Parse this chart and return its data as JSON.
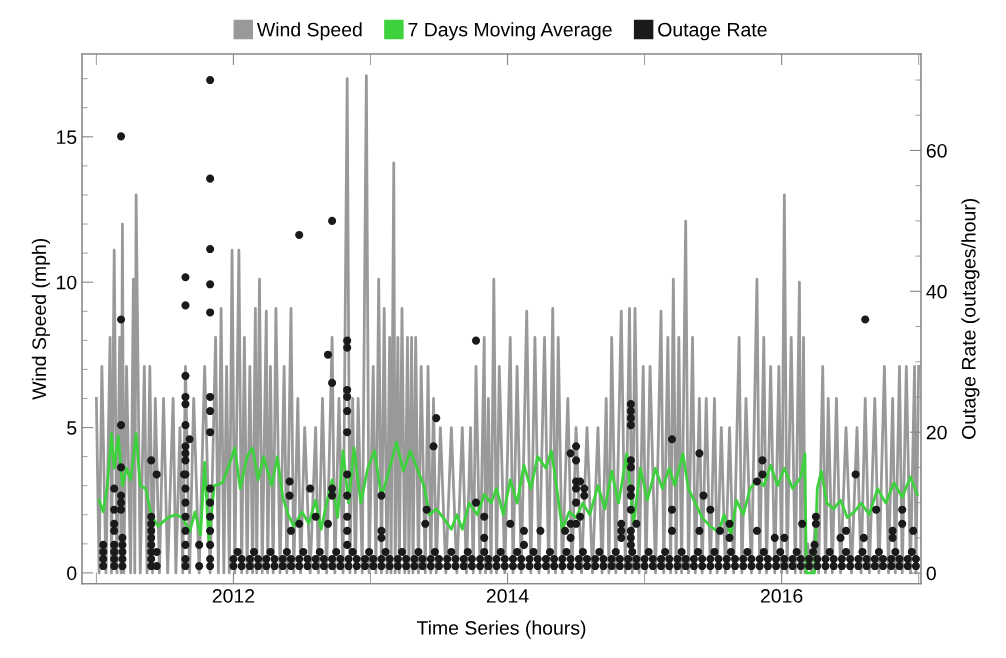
{
  "chart_data": {
    "type": "line",
    "xlabel": "Time Series (hours)",
    "ylabel": "Wind Speed (mph)",
    "y2label": "Outage Rate (outages/hour)",
    "xlim": [
      2010.895,
      2017.017
    ],
    "xticks": [
      {
        "value": 2011,
        "label": null
      },
      2012,
      {
        "value": 2013,
        "label": null
      },
      2014,
      {
        "value": 2015,
        "label": null
      },
      2016,
      {
        "value": 2017,
        "label": null
      }
    ],
    "ylim": [
      -0.37,
      17.85
    ],
    "yticks": [
      0,
      {
        "value": 1,
        "label": null
      },
      {
        "value": 2,
        "label": null
      },
      {
        "value": 3,
        "label": null
      },
      {
        "value": 4,
        "label": null
      },
      5,
      {
        "value": 6,
        "label": null
      },
      {
        "value": 7,
        "label": null
      },
      {
        "value": 8,
        "label": null
      },
      {
        "value": 9,
        "label": null
      },
      10,
      {
        "value": 11,
        "label": null
      },
      {
        "value": 12,
        "label": null
      },
      {
        "value": 13,
        "label": null
      },
      {
        "value": 14,
        "label": null
      },
      15,
      {
        "value": 16,
        "label": null
      },
      {
        "value": 17,
        "label": null
      }
    ],
    "y2lim": [
      -1.5,
      73.7
    ],
    "y2ticks": [
      0,
      {
        "value": 5,
        "label": null
      },
      {
        "value": 10,
        "label": null
      },
      {
        "value": 15,
        "label": null
      },
      20,
      {
        "value": 25,
        "label": null
      },
      {
        "value": 30,
        "label": null
      },
      {
        "value": 35,
        "label": null
      },
      40,
      {
        "value": 45,
        "label": null
      },
      {
        "value": 50,
        "label": null
      },
      {
        "value": 55,
        "label": null
      },
      60,
      {
        "value": 65,
        "label": null
      },
      {
        "value": 70,
        "label": null
      }
    ],
    "grid": false,
    "legend": "top",
    "series": [
      {
        "name": "Wind Speed",
        "color": "#999999",
        "marker": "none",
        "x": [
          2011.0,
          2011.02,
          2011.04,
          2011.07,
          2011.1,
          2011.11,
          2011.13,
          2011.15,
          2011.17,
          2011.18,
          2011.19,
          2011.2,
          2011.22,
          2011.25,
          2011.27,
          2011.28,
          2011.29,
          2011.32,
          2011.35,
          2011.37,
          2011.39,
          2011.41,
          2011.43,
          2011.46,
          2011.49,
          2011.52,
          2011.56,
          2011.58,
          2011.61,
          2011.63,
          2011.65,
          2011.68,
          2011.71,
          2011.75,
          2011.79,
          2011.83,
          2011.87,
          2011.89,
          2011.91,
          2011.93,
          2011.95,
          2011.97,
          2011.99,
          2012.01,
          2012.04,
          2012.06,
          2012.08,
          2012.1,
          2012.12,
          2012.14,
          2012.16,
          2012.17,
          2012.19,
          2012.21,
          2012.24,
          2012.25,
          2012.27,
          2012.29,
          2012.31,
          2012.34,
          2012.37,
          2012.39,
          2012.42,
          2012.44,
          2012.47,
          2012.49,
          2012.52,
          2012.56,
          2012.6,
          2012.62,
          2012.65,
          2012.68,
          2012.72,
          2012.74,
          2012.77,
          2012.8,
          2012.83,
          2012.85,
          2012.87,
          2012.89,
          2012.91,
          2012.94,
          2012.97,
          2012.99,
          2013.02,
          2013.04,
          2013.06,
          2013.08,
          2013.1,
          2013.12,
          2013.14,
          2013.15,
          2013.17,
          2013.18,
          2013.2,
          2013.21,
          2013.23,
          2013.25,
          2013.27,
          2013.28,
          2013.3,
          2013.31,
          2013.33,
          2013.35,
          2013.37,
          2013.4,
          2013.42,
          2013.44,
          2013.46,
          2013.48,
          2013.51,
          2013.55,
          2013.59,
          2013.63,
          2013.67,
          2013.7,
          2013.73,
          2013.75,
          2013.77,
          2013.8,
          2013.83,
          2013.84,
          2013.86,
          2013.88,
          2013.9,
          2013.92,
          2013.94,
          2013.98,
          2014.02,
          2014.04,
          2014.07,
          2014.1,
          2014.14,
          2014.17,
          2014.2,
          2014.23,
          2014.27,
          2014.3,
          2014.33,
          2014.35,
          2014.37,
          2014.4,
          2014.44,
          2014.47,
          2014.5,
          2014.54,
          2014.58,
          2014.62,
          2014.66,
          2014.69,
          2014.72,
          2014.74,
          2014.76,
          2014.79,
          2014.83,
          2014.86,
          2014.89,
          2014.91,
          2014.93,
          2014.96,
          2014.99,
          2015.01,
          2015.04,
          2015.08,
          2015.12,
          2015.14,
          2015.17,
          2015.19,
          2015.21,
          2015.23,
          2015.25,
          2015.27,
          2015.3,
          2015.32,
          2015.35,
          2015.37,
          2015.4,
          2015.42,
          2015.45,
          2015.48,
          2015.51,
          2015.53,
          2015.56,
          2015.59,
          2015.62,
          2015.65,
          2015.69,
          2015.71,
          2015.74,
          2015.78,
          2015.82,
          2015.84,
          2015.87,
          2015.89,
          2015.92,
          2015.95,
          2015.98,
          2016.0,
          2016.02,
          2016.04,
          2016.07,
          2016.1,
          2016.13,
          2016.14,
          2016.16,
          2016.17,
          2016.19,
          2016.22,
          2016.25,
          2016.27,
          2016.3,
          2016.32,
          2016.34,
          2016.37,
          2016.4,
          2016.43,
          2016.47,
          2016.51,
          2016.55,
          2016.58,
          2016.61,
          2016.64,
          2016.68,
          2016.71,
          2016.75,
          2016.78,
          2016.81,
          2016.83,
          2016.86,
          2016.88,
          2016.91,
          2016.94,
          2016.97,
          2016.98,
          2017.0
        ],
        "values": [
          6.0,
          0,
          7.1,
          0,
          8.1,
          0,
          11.1,
          0,
          8.1,
          0,
          12.0,
          0,
          7.1,
          0,
          10.1,
          0,
          13.0,
          0,
          7.1,
          0,
          7.1,
          0,
          6.0,
          0,
          6.0,
          0,
          6.0,
          0,
          5.0,
          0,
          7.1,
          0,
          6.0,
          0,
          7.1,
          0,
          8.1,
          0,
          9.1,
          0,
          7.1,
          0,
          11.1,
          0,
          11.1,
          0,
          8.1,
          0,
          7.1,
          0,
          9.1,
          0,
          10.1,
          0,
          9.0,
          0,
          7.1,
          0,
          9.1,
          0,
          7.1,
          0,
          9.1,
          0,
          6.0,
          0,
          5.0,
          0,
          5.0,
          0,
          6.0,
          0,
          8.1,
          0,
          6.0,
          0,
          17.0,
          0,
          6.0,
          0,
          6.0,
          0,
          17.1,
          0,
          7.1,
          0,
          10.1,
          0,
          9.1,
          0,
          8.1,
          0,
          14.1,
          0,
          8.1,
          0,
          9.1,
          0,
          8.1,
          0,
          8.1,
          0,
          8.1,
          0,
          7.1,
          0,
          7.1,
          0,
          6.0,
          0,
          5.0,
          0,
          5.0,
          0,
          5.0,
          0,
          5.0,
          0,
          7.1,
          0,
          8.1,
          0,
          6.0,
          0,
          10.1,
          0,
          7.1,
          0,
          8.1,
          0,
          7.1,
          0,
          9.0,
          0,
          8.1,
          0,
          8.1,
          0,
          9.1,
          0,
          8.1,
          0,
          6.0,
          0,
          5.0,
          0,
          5.0,
          0,
          5.0,
          0,
          6.0,
          0,
          8.1,
          0,
          9.0,
          0,
          9.1,
          0,
          9.1,
          0,
          7.1,
          0,
          7.1,
          0,
          9.0,
          0,
          8.1,
          0,
          10.1,
          0,
          8.1,
          0,
          12.1,
          0,
          8.1,
          0,
          6.0,
          0,
          6.0,
          0,
          6.0,
          0,
          5.0,
          0,
          5.0,
          0,
          8.1,
          0,
          6.0,
          0,
          10.1,
          0,
          8.1,
          0,
          7.1,
          0,
          7.1,
          0,
          13.0,
          0,
          8.1,
          0,
          10.0,
          0,
          8.1,
          0,
          1.0,
          0,
          2.0,
          0,
          7.1,
          0,
          6.0,
          0,
          6.0,
          0,
          5.0,
          0,
          5.0,
          0,
          6.0,
          0,
          6.0,
          0,
          7.1,
          0,
          6.0,
          0,
          7.1,
          0,
          7.1,
          0,
          7.1,
          0,
          7.1
        ]
      },
      {
        "name": "7 Days Moving Average",
        "color": "#3dd13d",
        "marker": "none",
        "x": [
          2011.02,
          2011.05,
          2011.08,
          2011.11,
          2011.13,
          2011.16,
          2011.19,
          2011.22,
          2011.25,
          2011.29,
          2011.32,
          2011.36,
          2011.4,
          2011.45,
          2011.52,
          2011.58,
          2011.63,
          2011.68,
          2011.72,
          2011.76,
          2011.79,
          2011.82,
          2011.86,
          2011.92,
          2011.96,
          2012.01,
          2012.05,
          2012.1,
          2012.14,
          2012.18,
          2012.22,
          2012.28,
          2012.32,
          2012.36,
          2012.4,
          2012.44,
          2012.5,
          2012.55,
          2012.6,
          2012.64,
          2012.68,
          2012.72,
          2012.76,
          2012.8,
          2012.84,
          2012.88,
          2012.93,
          2012.98,
          2013.03,
          2013.08,
          2013.14,
          2013.19,
          2013.24,
          2013.29,
          2013.34,
          2013.39,
          2013.43,
          2013.48,
          2013.53,
          2013.59,
          2013.63,
          2013.67,
          2013.72,
          2013.78,
          2013.83,
          2013.88,
          2013.92,
          2013.97,
          2014.02,
          2014.07,
          2014.12,
          2014.17,
          2014.22,
          2014.28,
          2014.32,
          2014.36,
          2014.4,
          2014.45,
          2014.5,
          2014.55,
          2014.6,
          2014.66,
          2014.71,
          2014.76,
          2014.81,
          2014.87,
          2014.92,
          2014.97,
          2015.02,
          2015.08,
          2015.13,
          2015.18,
          2015.22,
          2015.28,
          2015.32,
          2015.37,
          2015.42,
          2015.48,
          2015.54,
          2015.58,
          2015.63,
          2015.67,
          2015.72,
          2015.77,
          2015.82,
          2015.87,
          2015.92,
          2015.97,
          2016.02,
          2016.08,
          2016.14,
          2016.17,
          2016.18,
          2016.24,
          2016.26,
          2016.29,
          2016.33,
          2016.38,
          2016.43,
          2016.48,
          2016.53,
          2016.58,
          2016.64,
          2016.7,
          2016.76,
          2016.82,
          2016.88,
          2016.94,
          2016.99
        ],
        "values": [
          2.5,
          2.1,
          3.0,
          4.8,
          3.6,
          4.7,
          3.0,
          3.6,
          3.2,
          4.8,
          3.0,
          2.9,
          2.0,
          1.6,
          1.9,
          2.0,
          1.9,
          1.4,
          2.1,
          1.3,
          3.8,
          1.1,
          3.0,
          3.1,
          3.6,
          4.3,
          2.9,
          4.0,
          4.3,
          3.2,
          4.0,
          3.0,
          4.0,
          2.6,
          2.0,
          1.6,
          2.1,
          1.7,
          2.5,
          1.5,
          2.4,
          3.2,
          1.9,
          4.2,
          2.4,
          4.3,
          2.4,
          3.6,
          4.2,
          2.6,
          3.6,
          4.5,
          3.5,
          4.2,
          3.6,
          3.0,
          2.0,
          2.2,
          1.9,
          1.5,
          2.0,
          1.5,
          2.4,
          2.0,
          2.7,
          2.4,
          2.9,
          2.0,
          3.2,
          2.4,
          3.7,
          2.9,
          4.0,
          3.6,
          4.2,
          2.9,
          1.5,
          2.1,
          1.9,
          2.4,
          2.0,
          3.0,
          2.2,
          3.5,
          2.4,
          4.1,
          1.7,
          3.6,
          2.5,
          3.6,
          2.9,
          3.6,
          3.0,
          4.1,
          2.9,
          2.4,
          1.9,
          1.6,
          1.4,
          2.0,
          1.3,
          2.5,
          2.0,
          2.9,
          3.2,
          3.0,
          3.7,
          3.0,
          3.6,
          2.9,
          3.3,
          4.1,
          0.0,
          0.0,
          2.9,
          3.5,
          2.4,
          2.2,
          2.5,
          1.9,
          2.1,
          2.4,
          2.0,
          2.9,
          2.4,
          3.1,
          2.6,
          3.3,
          2.7
        ]
      },
      {
        "name": "Outage Rate",
        "type": "scatter",
        "axis": "y2",
        "color": "#1a1a1a",
        "marker": "circle",
        "x": [
          2011.05,
          2011.05,
          2011.05,
          2011.05,
          2011.13,
          2011.13,
          2011.13,
          2011.13,
          2011.13,
          2011.13,
          2011.13,
          2011.13,
          2011.18,
          2011.18,
          2011.18,
          2011.18,
          2011.18,
          2011.18,
          2011.18,
          2011.19,
          2011.19,
          2011.19,
          2011.19,
          2011.19,
          2011.4,
          2011.4,
          2011.4,
          2011.4,
          2011.4,
          2011.4,
          2011.4,
          2011.4,
          2011.4,
          2011.44,
          2011.44,
          2011.44,
          2011.64,
          2011.65,
          2011.65,
          2011.65,
          2011.65,
          2011.65,
          2011.65,
          2011.65,
          2011.65,
          2011.65,
          2011.65,
          2011.65,
          2011.65,
          2011.65,
          2011.65,
          2011.65,
          2011.65,
          2011.65,
          2011.68,
          2011.75,
          2011.75,
          2011.83,
          2011.83,
          2011.83,
          2011.83,
          2011.83,
          2011.83,
          2011.83,
          2011.83,
          2011.83,
          2011.83,
          2011.83,
          2011.83,
          2011.83,
          2011.83,
          2011.83,
          2012.41,
          2012.41,
          2012.42,
          2012.48,
          2012.48,
          2012.56,
          2012.6,
          2012.69,
          2012.69,
          2012.72,
          2012.72,
          2012.72,
          2012.72,
          2012.83,
          2012.83,
          2012.83,
          2012.83,
          2012.83,
          2012.83,
          2012.83,
          2012.83,
          2012.83,
          2012.83,
          2012.83,
          2013.08,
          2013.08,
          2013.08,
          2013.4,
          2013.41,
          2013.46,
          2013.48,
          2013.77,
          2013.77,
          2013.83,
          2013.83,
          2014.02,
          2014.12,
          2014.12,
          2014.24,
          2014.42,
          2014.46,
          2014.46,
          2014.46,
          2014.5,
          2014.5,
          2014.5,
          2014.5,
          2014.5,
          2014.5,
          2014.53,
          2014.53,
          2014.56,
          2014.56,
          2014.83,
          2014.83,
          2014.83,
          2014.9,
          2014.9,
          2014.9,
          2014.9,
          2014.9,
          2014.9,
          2014.9,
          2014.9,
          2014.9,
          2014.9,
          2014.9,
          2014.9,
          2014.94,
          2015.2,
          2015.2,
          2015.2,
          2015.4,
          2015.4,
          2015.43,
          2015.48,
          2015.55,
          2015.62,
          2015.62,
          2015.82,
          2015.82,
          2015.86,
          2015.86,
          2015.95,
          2016.02,
          2016.15,
          2016.24,
          2016.25,
          2016.25,
          2016.43,
          2016.47,
          2016.54,
          2016.6,
          2016.61,
          2016.69,
          2016.81,
          2016.81,
          2016.88,
          2016.88,
          2016.96
        ],
        "values": [
          1,
          2,
          3,
          4,
          1,
          2,
          3,
          4,
          6,
          7,
          9,
          12,
          62,
          36,
          21,
          15,
          11,
          10,
          9,
          1,
          2,
          3,
          4,
          5,
          16,
          8,
          7,
          6,
          5,
          4,
          3,
          2,
          1,
          14,
          3,
          1,
          14,
          42,
          38,
          28,
          25,
          24,
          21,
          18,
          17,
          16,
          14,
          12,
          10,
          8,
          6,
          4,
          2,
          1,
          19,
          4,
          1,
          70,
          56,
          46,
          41,
          37,
          25,
          23,
          20,
          12,
          10,
          8,
          6,
          4,
          2,
          1,
          13,
          11,
          6,
          48,
          7,
          12,
          8,
          31,
          7,
          50,
          27,
          12,
          11,
          33,
          32,
          26,
          25,
          23,
          20,
          14,
          11,
          8,
          6,
          4,
          11,
          6,
          5,
          7,
          9,
          18,
          22,
          33,
          10,
          8,
          5,
          7,
          6,
          4,
          6,
          6,
          17,
          7,
          5,
          18,
          16,
          13,
          12,
          10,
          7,
          13,
          8,
          12,
          11,
          7,
          6,
          5,
          24,
          23,
          22,
          21,
          16,
          15,
          12,
          11,
          9,
          6,
          5,
          4,
          7,
          19,
          9,
          6,
          17,
          6,
          11,
          9,
          6,
          7,
          5,
          13,
          6,
          16,
          14,
          5,
          5,
          7,
          4,
          8,
          7,
          5,
          6,
          14,
          5,
          36,
          9,
          6,
          5,
          9,
          7,
          6
        ]
      },
      {
        "type": "scatter",
        "axis": "y2",
        "color": "#1a1a1a",
        "marker": "circle",
        "x": [
          2012.0,
          2012.06,
          2012.12,
          2012.18,
          2012.24,
          2012.3,
          2012.36,
          2012.42,
          2012.48,
          2012.54,
          2012.6,
          2012.66,
          2012.72,
          2012.78,
          2012.84,
          2012.9,
          2012.96,
          2013.02,
          2013.08,
          2013.14,
          2013.2,
          2013.26,
          2013.32,
          2013.38,
          2013.44,
          2013.5,
          2013.56,
          2013.62,
          2013.68,
          2013.74,
          2013.8,
          2013.86,
          2013.92,
          2013.98,
          2014.04,
          2014.1,
          2014.16,
          2014.22,
          2014.28,
          2014.34,
          2014.4,
          2014.46,
          2014.52,
          2014.58,
          2014.64,
          2014.7,
          2014.76,
          2014.82,
          2014.88,
          2014.94,
          2015.0,
          2015.06,
          2015.12,
          2015.18,
          2015.24,
          2015.3,
          2015.36,
          2015.42,
          2015.48,
          2015.54,
          2015.6,
          2015.66,
          2015.72,
          2015.78,
          2015.84,
          2015.9,
          2015.96,
          2016.02,
          2016.08,
          2016.14,
          2016.2,
          2016.26,
          2016.32,
          2016.38,
          2016.44,
          2016.5,
          2016.56,
          2016.62,
          2016.68,
          2016.74,
          2016.8,
          2016.86,
          2016.92,
          2016.98
        ],
        "values": [
          1,
          1,
          1,
          1,
          1,
          1,
          1,
          1,
          1,
          1,
          1,
          1,
          1,
          1,
          1,
          1,
          1,
          1,
          1,
          1,
          1,
          1,
          1,
          1,
          1,
          1,
          1,
          1,
          1,
          1,
          1,
          1,
          1,
          1,
          1,
          1,
          1,
          1,
          1,
          1,
          1,
          1,
          1,
          1,
          1,
          1,
          1,
          1,
          1,
          1,
          1,
          1,
          1,
          1,
          1,
          1,
          1,
          1,
          1,
          1,
          1,
          1,
          1,
          1,
          1,
          1,
          1,
          1,
          1,
          1,
          1,
          1,
          1,
          1,
          1,
          1,
          1,
          1,
          1,
          1,
          1,
          1,
          1,
          1
        ]
      },
      {
        "type": "scatter",
        "axis": "y2",
        "color": "#1a1a1a",
        "marker": "circle",
        "x": [
          2012.0,
          2012.06,
          2012.12,
          2012.18,
          2012.24,
          2012.3,
          2012.36,
          2012.42,
          2012.48,
          2012.54,
          2012.6,
          2012.66,
          2012.72,
          2012.78,
          2012.84,
          2012.9,
          2012.96,
          2013.02,
          2013.08,
          2013.14,
          2013.2,
          2013.26,
          2013.32,
          2013.38,
          2013.44,
          2013.5,
          2013.56,
          2013.62,
          2013.68,
          2013.74,
          2013.8,
          2013.86,
          2013.92,
          2013.98,
          2014.04,
          2014.1,
          2014.16,
          2014.22,
          2014.28,
          2014.34,
          2014.4,
          2014.46,
          2014.52,
          2014.58,
          2014.64,
          2014.7,
          2014.76,
          2014.82,
          2014.88,
          2014.94,
          2015.0,
          2015.06,
          2015.12,
          2015.18,
          2015.24,
          2015.3,
          2015.36,
          2015.42,
          2015.48,
          2015.54,
          2015.6,
          2015.66,
          2015.72,
          2015.78,
          2015.84,
          2015.9,
          2015.96,
          2016.02,
          2016.08,
          2016.14,
          2016.2,
          2016.26,
          2016.32,
          2016.38,
          2016.44,
          2016.5,
          2016.56,
          2016.62,
          2016.68,
          2016.74,
          2016.8,
          2016.86,
          2016.92,
          2016.98
        ],
        "values": [
          2,
          2,
          2,
          2,
          2,
          2,
          2,
          2,
          2,
          2,
          2,
          2,
          2,
          2,
          2,
          2,
          2,
          2,
          2,
          2,
          2,
          2,
          2,
          2,
          2,
          2,
          2,
          2,
          2,
          2,
          2,
          2,
          2,
          2,
          2,
          2,
          2,
          2,
          2,
          2,
          2,
          2,
          2,
          2,
          2,
          2,
          2,
          2,
          2,
          2,
          2,
          2,
          2,
          2,
          2,
          2,
          2,
          2,
          2,
          2,
          2,
          2,
          2,
          2,
          2,
          2,
          2,
          2,
          2,
          2,
          2,
          2,
          2,
          2,
          2,
          2,
          2,
          2,
          2,
          2,
          2,
          2,
          2,
          2
        ]
      },
      {
        "type": "scatter",
        "axis": "y2",
        "color": "#1a1a1a",
        "marker": "circle",
        "x": [
          2012.03,
          2012.15,
          2012.27,
          2012.39,
          2012.51,
          2012.63,
          2012.75,
          2012.87,
          2012.99,
          2013.11,
          2013.23,
          2013.35,
          2013.47,
          2013.59,
          2013.71,
          2013.83,
          2013.95,
          2014.07,
          2014.19,
          2014.31,
          2014.43,
          2014.55,
          2014.67,
          2014.79,
          2014.91,
          2015.03,
          2015.15,
          2015.27,
          2015.39,
          2015.51,
          2015.63,
          2015.75,
          2015.87,
          2015.99,
          2016.11,
          2016.23,
          2016.35,
          2016.47,
          2016.59,
          2016.71,
          2016.83,
          2016.95
        ],
        "values": [
          3,
          3,
          3,
          3,
          3,
          3,
          3,
          3,
          3,
          3,
          3,
          3,
          3,
          3,
          3,
          3,
          3,
          3,
          3,
          3,
          3,
          3,
          3,
          3,
          3,
          3,
          3,
          3,
          3,
          3,
          3,
          3,
          3,
          3,
          3,
          3,
          3,
          3,
          3,
          3,
          3,
          3
        ]
      }
    ]
  }
}
